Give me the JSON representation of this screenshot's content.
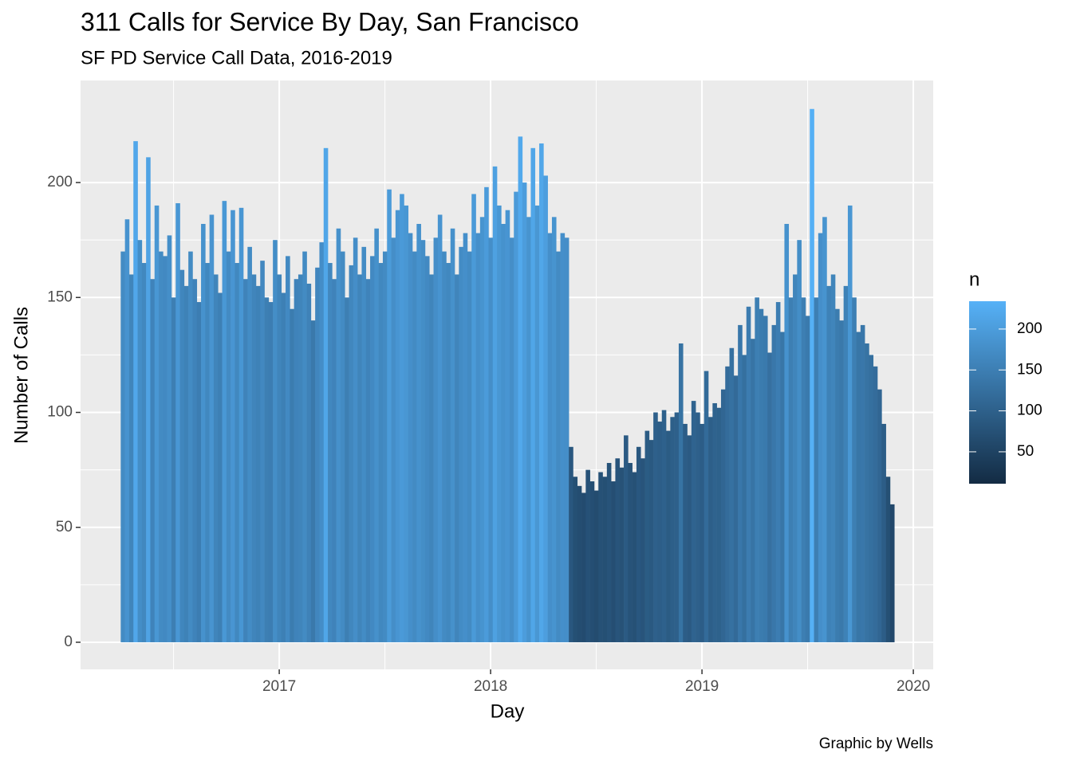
{
  "chart_data": {
    "type": "bar",
    "title": "311 Calls for Service By Day, San Francisco",
    "subtitle": "SF PD Service Call Data, 2016-2019",
    "x_label": "Day",
    "y_label": "Number of Calls",
    "caption": "Graphic by Wells",
    "legend_title": "n",
    "x": [
      2016.26,
      2016.28,
      2016.3,
      2016.32,
      2016.34,
      2016.36,
      2016.38,
      2016.4,
      2016.42,
      2016.44,
      2016.46,
      2016.48,
      2016.5,
      2016.52,
      2016.54,
      2016.56,
      2016.58,
      2016.6,
      2016.62,
      2016.64,
      2016.66,
      2016.68,
      2016.7,
      2016.72,
      2016.74,
      2016.76,
      2016.78,
      2016.8,
      2016.82,
      2016.84,
      2016.86,
      2016.88,
      2016.9,
      2016.92,
      2016.94,
      2016.96,
      2016.98,
      2017.0,
      2017.02,
      2017.04,
      2017.06,
      2017.08,
      2017.1,
      2017.12,
      2017.14,
      2017.16,
      2017.18,
      2017.2,
      2017.22,
      2017.24,
      2017.26,
      2017.28,
      2017.3,
      2017.32,
      2017.34,
      2017.36,
      2017.38,
      2017.4,
      2017.42,
      2017.44,
      2017.46,
      2017.48,
      2017.5,
      2017.52,
      2017.54,
      2017.56,
      2017.58,
      2017.6,
      2017.62,
      2017.64,
      2017.66,
      2017.68,
      2017.7,
      2017.72,
      2017.74,
      2017.76,
      2017.78,
      2017.8,
      2017.82,
      2017.84,
      2017.86,
      2017.88,
      2017.9,
      2017.92,
      2017.94,
      2017.96,
      2017.98,
      2018.0,
      2018.02,
      2018.04,
      2018.06,
      2018.08,
      2018.1,
      2018.12,
      2018.14,
      2018.16,
      2018.18,
      2018.2,
      2018.22,
      2018.24,
      2018.26,
      2018.28,
      2018.3,
      2018.32,
      2018.34,
      2018.36,
      2018.38,
      2018.4,
      2018.42,
      2018.44,
      2018.46,
      2018.48,
      2018.5,
      2018.52,
      2018.54,
      2018.56,
      2018.58,
      2018.6,
      2018.62,
      2018.64,
      2018.66,
      2018.68,
      2018.7,
      2018.72,
      2018.74,
      2018.76,
      2018.78,
      2018.8,
      2018.82,
      2018.84,
      2018.86,
      2018.88,
      2018.9,
      2018.92,
      2018.94,
      2018.96,
      2018.98,
      2019.0,
      2019.02,
      2019.04,
      2019.06,
      2019.08,
      2019.1,
      2019.12,
      2019.14,
      2019.16,
      2019.18,
      2019.2,
      2019.22,
      2019.24,
      2019.26,
      2019.28,
      2019.3,
      2019.32,
      2019.34,
      2019.36,
      2019.38,
      2019.4,
      2019.42,
      2019.44,
      2019.46,
      2019.48,
      2019.5,
      2019.52,
      2019.54,
      2019.56,
      2019.58,
      2019.6,
      2019.62,
      2019.64,
      2019.66,
      2019.68,
      2019.7,
      2019.72,
      2019.74,
      2019.76,
      2019.78,
      2019.8,
      2019.82,
      2019.84,
      2019.86,
      2019.88,
      2019.9
    ],
    "values": [
      170,
      184,
      160,
      218,
      175,
      165,
      211,
      158,
      190,
      170,
      168,
      177,
      150,
      191,
      162,
      155,
      170,
      158,
      148,
      182,
      165,
      186,
      160,
      152,
      192,
      170,
      188,
      165,
      189,
      158,
      172,
      160,
      155,
      166,
      150,
      148,
      175,
      160,
      152,
      168,
      145,
      158,
      160,
      170,
      156,
      140,
      163,
      174,
      215,
      165,
      158,
      180,
      170,
      150,
      164,
      176,
      160,
      172,
      158,
      168,
      180,
      165,
      170,
      197,
      176,
      188,
      195,
      190,
      178,
      170,
      182,
      175,
      168,
      160,
      176,
      186,
      170,
      165,
      180,
      160,
      172,
      178,
      170,
      195,
      178,
      185,
      198,
      176,
      207,
      190,
      182,
      188,
      176,
      196,
      220,
      200,
      185,
      215,
      190,
      217,
      203,
      178,
      185,
      170,
      178,
      176,
      85,
      72,
      68,
      65,
      75,
      70,
      66,
      74,
      72,
      78,
      70,
      80,
      76,
      90,
      78,
      74,
      85,
      80,
      92,
      88,
      100,
      96,
      101,
      92,
      98,
      100,
      130,
      95,
      90,
      105,
      100,
      95,
      118,
      98,
      104,
      102,
      110,
      120,
      128,
      116,
      138,
      125,
      146,
      132,
      150,
      145,
      142,
      126,
      138,
      148,
      135,
      182,
      150,
      160,
      175,
      150,
      142,
      232,
      150,
      178,
      185,
      155,
      160,
      145,
      140,
      155,
      190,
      150,
      135,
      138,
      130,
      125,
      120,
      110,
      95,
      72,
      60
    ],
    "xlim": [
      2016.06,
      2020.094
    ],
    "xticks": [
      2017,
      2018,
      2019,
      2020
    ],
    "ylim": [
      -11.8,
      244.4
    ],
    "yticks": [
      0,
      50,
      100,
      150,
      200
    ],
    "fill_low": "#132B43",
    "fill_high": "#56B1F7",
    "fill_limits": [
      11,
      234
    ],
    "legend_ticks": [
      50,
      100,
      150,
      200
    ],
    "grid": true,
    "background": "#EBEBEB"
  }
}
